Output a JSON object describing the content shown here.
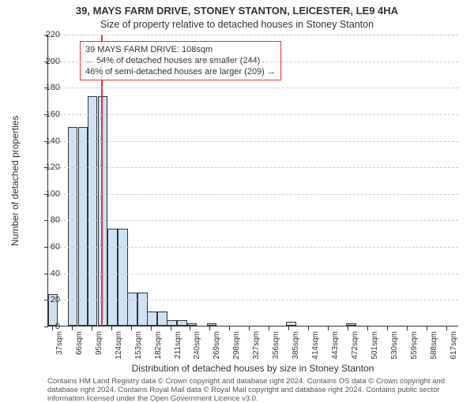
{
  "title": "39, MAYS FARM DRIVE, STONEY STANTON, LEICESTER, LE9 4HA",
  "subtitle": "Size of property relative to detached houses in Stoney Stanton",
  "ylabel": "Number of detached properties",
  "xlabel": "Distribution of detached houses by size in Stoney Stanton",
  "chart": {
    "type": "histogram",
    "ylim": [
      0,
      220
    ],
    "ytick_step": 20,
    "background": "#ffffff",
    "grid_color": "#cccccc",
    "axis_color": "#333333",
    "bar_fill": "#cfe2f3",
    "bar_stroke": "#333333",
    "marker_color": "#ee3333",
    "marker_value_sqm": 108,
    "x_min": 30,
    "x_max": 635,
    "x_tick_start": 37,
    "x_tick_step_sqm": 29,
    "x_tick_count": 21,
    "bar_step_sqm": 14.5,
    "bars": [
      {
        "x": 37,
        "v": 24
      },
      {
        "x": 52,
        "v": 0
      },
      {
        "x": 66,
        "v": 150
      },
      {
        "x": 81,
        "v": 150
      },
      {
        "x": 95,
        "v": 173
      },
      {
        "x": 110,
        "v": 173
      },
      {
        "x": 125,
        "v": 73
      },
      {
        "x": 140,
        "v": 73
      },
      {
        "x": 154,
        "v": 25
      },
      {
        "x": 169,
        "v": 25
      },
      {
        "x": 183,
        "v": 11
      },
      {
        "x": 198,
        "v": 11
      },
      {
        "x": 212,
        "v": 4
      },
      {
        "x": 227,
        "v": 4
      },
      {
        "x": 242,
        "v": 2
      },
      {
        "x": 256,
        "v": 0
      },
      {
        "x": 271,
        "v": 2
      },
      {
        "x": 286,
        "v": 0
      },
      {
        "x": 300,
        "v": 0
      },
      {
        "x": 315,
        "v": 0
      },
      {
        "x": 329,
        "v": 0
      },
      {
        "x": 344,
        "v": 0
      },
      {
        "x": 359,
        "v": 0
      },
      {
        "x": 373,
        "v": 0
      },
      {
        "x": 388,
        "v": 3
      },
      {
        "x": 403,
        "v": 0
      },
      {
        "x": 417,
        "v": 0
      },
      {
        "x": 432,
        "v": 0
      },
      {
        "x": 446,
        "v": 0
      },
      {
        "x": 461,
        "v": 0
      },
      {
        "x": 476,
        "v": 2
      },
      {
        "x": 490,
        "v": 0
      },
      {
        "x": 505,
        "v": 0
      },
      {
        "x": 520,
        "v": 0
      },
      {
        "x": 534,
        "v": 0
      },
      {
        "x": 549,
        "v": 0
      },
      {
        "x": 563,
        "v": 0
      },
      {
        "x": 578,
        "v": 0
      },
      {
        "x": 593,
        "v": 0
      },
      {
        "x": 607,
        "v": 0
      },
      {
        "x": 622,
        "v": 0
      }
    ]
  },
  "annotation": {
    "line1": "39 MAYS FARM DRIVE: 108sqm",
    "line2": "← 54% of detached houses are smaller (244)",
    "line3": "46% of semi-detached houses are larger (209) →"
  },
  "attribution": "Contains HM Land Registry data © Crown copyright and database right 2024. Contains OS data © Crown copyright and database right 2024. Contains Royal Mail data © Royal Mail copyright and database right 2024. Contains public sector information licensed under the Open Government Licence v3.0."
}
